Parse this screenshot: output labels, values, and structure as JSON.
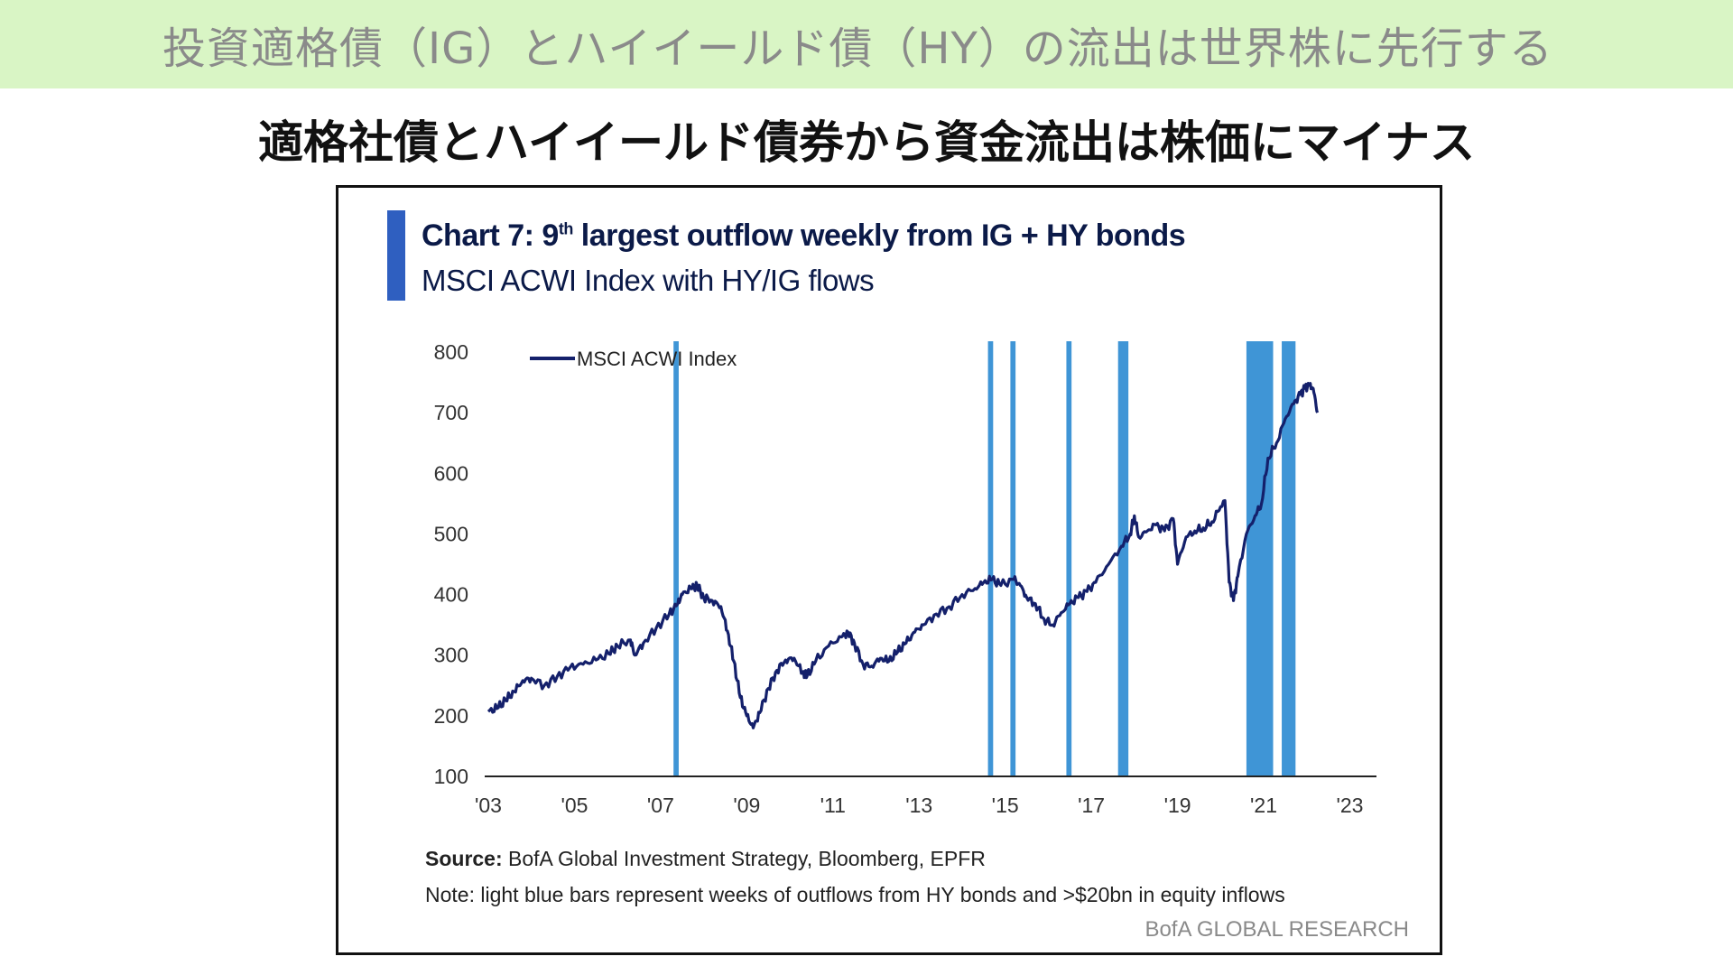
{
  "banner": {
    "text": "投資適格債（IG）とハイイールド債（HY）の流出は世界株に先行する"
  },
  "headline": {
    "text": "適格社債とハイイールド債券から資金流出は株価にマイナス"
  },
  "colors": {
    "banner_bg": "#d9f5c5",
    "line": "#14206b",
    "bars": "#3f95d6",
    "accent": "#2f5fc0"
  },
  "chart_data": {
    "type": "line",
    "title": "Chart 7: 9th largest outflow weekly from IG + HY bonds",
    "title_main": "Chart 7: 9",
    "title_sup": "th",
    "title_rest": " largest outflow weekly from IG + HY bonds",
    "subtitle": "MSCI ACWI Index with HY/IG flows",
    "ylim": [
      100,
      800
    ],
    "y_ticks": [
      "800",
      "700",
      "600",
      "500",
      "400",
      "300",
      "200",
      "100"
    ],
    "xlim": [
      2003,
      2023.2
    ],
    "x_ticks": [
      {
        "year": 2003,
        "label": "'03"
      },
      {
        "year": 2005,
        "label": "'05"
      },
      {
        "year": 2007,
        "label": "'07"
      },
      {
        "year": 2009,
        "label": "'09"
      },
      {
        "year": 2011,
        "label": "'11"
      },
      {
        "year": 2013,
        "label": "'13"
      },
      {
        "year": 2015,
        "label": "'15"
      },
      {
        "year": 2017,
        "label": "'17"
      },
      {
        "year": 2019,
        "label": "'19"
      },
      {
        "year": 2021,
        "label": "'21"
      },
      {
        "year": 2023,
        "label": "'23"
      }
    ],
    "legend": {
      "label": "MSCI ACWI Index",
      "position": "top-left"
    },
    "series": [
      {
        "name": "MSCI ACWI Index",
        "x": [
          2003.0,
          2003.2,
          2003.4,
          2003.6,
          2003.8,
          2004.0,
          2004.3,
          2004.6,
          2004.9,
          2005.2,
          2005.5,
          2005.8,
          2006.0,
          2006.3,
          2006.4,
          2006.6,
          2006.9,
          2007.2,
          2007.4,
          2007.5,
          2007.7,
          2007.85,
          2008.0,
          2008.2,
          2008.4,
          2008.55,
          2008.7,
          2008.85,
          2009.0,
          2009.15,
          2009.3,
          2009.5,
          2009.7,
          2009.9,
          2010.1,
          2010.3,
          2010.4,
          2010.6,
          2010.9,
          2011.2,
          2011.35,
          2011.5,
          2011.7,
          2011.9,
          2012.1,
          2012.3,
          2012.5,
          2012.7,
          2012.9,
          2013.1,
          2013.4,
          2013.7,
          2014.0,
          2014.3,
          2014.5,
          2014.7,
          2014.9,
          2015.2,
          2015.35,
          2015.5,
          2015.7,
          2015.9,
          2016.1,
          2016.3,
          2016.5,
          2016.7,
          2016.9,
          2017.1,
          2017.4,
          2017.7,
          2017.9,
          2018.0,
          2018.1,
          2018.3,
          2018.5,
          2018.7,
          2018.9,
          2019.0,
          2019.2,
          2019.4,
          2019.6,
          2019.8,
          2020.0,
          2020.1,
          2020.2,
          2020.3,
          2020.4,
          2020.6,
          2020.8,
          2020.95,
          2021.1,
          2021.3,
          2021.5,
          2021.7,
          2021.85,
          2021.95,
          2022.05,
          2022.15,
          2022.25
        ],
        "values": [
          207,
          212,
          225,
          240,
          258,
          262,
          250,
          265,
          280,
          285,
          292,
          302,
          315,
          325,
          300,
          320,
          345,
          368,
          385,
          400,
          410,
          415,
          395,
          390,
          380,
          340,
          290,
          230,
          200,
          180,
          205,
          245,
          275,
          292,
          295,
          270,
          265,
          290,
          315,
          330,
          338,
          320,
          285,
          282,
          295,
          290,
          305,
          320,
          338,
          350,
          368,
          380,
          400,
          410,
          420,
          425,
          415,
          425,
          415,
          395,
          385,
          360,
          350,
          370,
          385,
          395,
          405,
          420,
          450,
          480,
          500,
          530,
          495,
          505,
          515,
          505,
          525,
          450,
          495,
          505,
          510,
          520,
          545,
          555,
          420,
          390,
          430,
          500,
          530,
          550,
          625,
          650,
          690,
          715,
          730,
          740,
          745,
          740,
          700
        ]
      }
    ],
    "outflow_bars": [
      {
        "start": 2007.3,
        "end": 2007.42
      },
      {
        "start": 2014.6,
        "end": 2014.72
      },
      {
        "start": 2015.12,
        "end": 2015.24
      },
      {
        "start": 2016.42,
        "end": 2016.54
      },
      {
        "start": 2017.62,
        "end": 2017.86
      },
      {
        "start": 2020.6,
        "end": 2021.22
      },
      {
        "start": 2021.42,
        "end": 2021.74
      }
    ],
    "source_label": "Source:",
    "source_text": " BofA Global Investment Strategy, Bloomberg, EPFR",
    "note_text": "Note: light blue bars represent weeks of outflows from HY bonds and >$20bn in equity inflows",
    "brand": "BofA GLOBAL RESEARCH"
  }
}
